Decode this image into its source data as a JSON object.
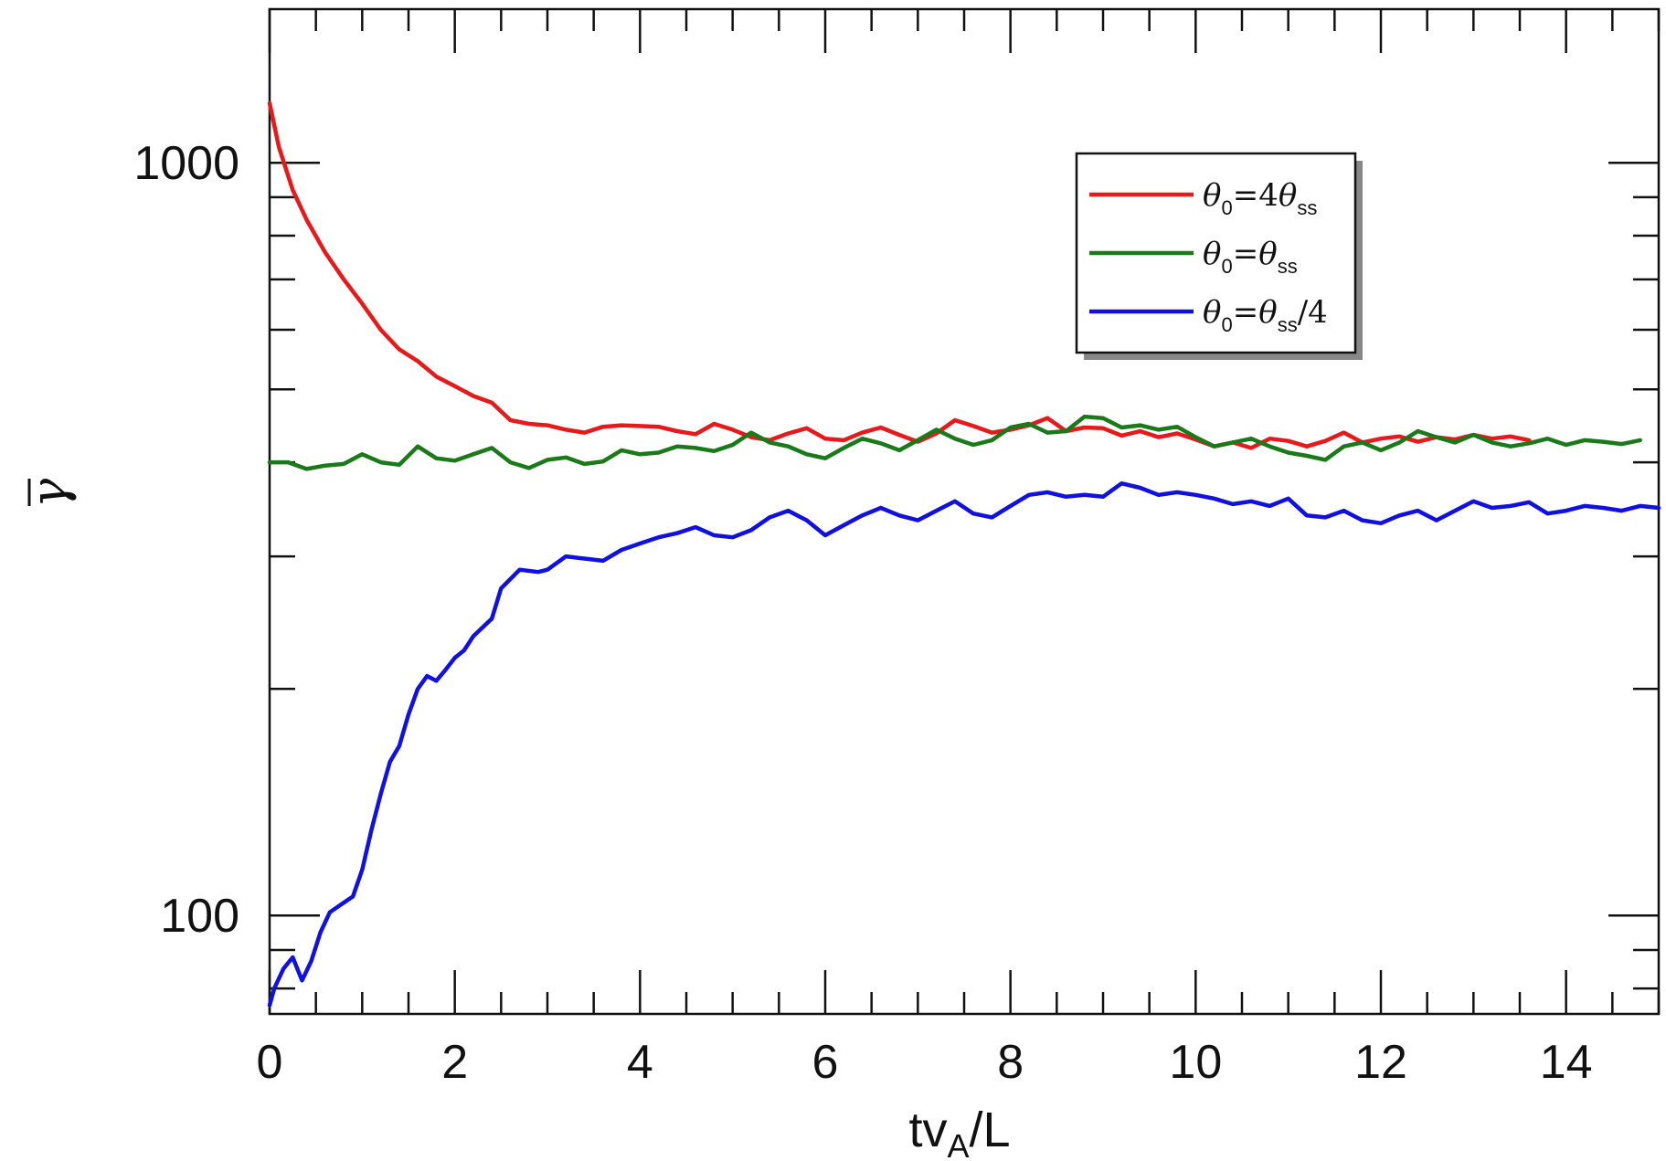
{
  "chart_data": {
    "type": "line",
    "xlabel": "tv",
    "xlabel_sub": "A",
    "xlabel_tail": "/L",
    "ylabel": "γ",
    "yscale": "log",
    "xlim": [
      0,
      15
    ],
    "ylim": [
      74,
      1600
    ],
    "x_ticks": [
      "0",
      "2",
      "4",
      "6",
      "8",
      "10",
      "12",
      "14"
    ],
    "y_ticks": [
      "100",
      "1000"
    ],
    "legend_position": "top-right",
    "series": [
      {
        "label": {
          "base": "θ",
          "sub0": "0",
          "eq": "=4θ",
          "sub1": "ss",
          "tail": ""
        },
        "color": "#e8191b",
        "points": [
          [
            0,
            1200
          ],
          [
            0.1,
            1050
          ],
          [
            0.25,
            920
          ],
          [
            0.4,
            840
          ],
          [
            0.6,
            760
          ],
          [
            0.8,
            700
          ],
          [
            1.0,
            650
          ],
          [
            1.2,
            600
          ],
          [
            1.4,
            565
          ],
          [
            1.6,
            545
          ],
          [
            1.8,
            520
          ],
          [
            2.0,
            505
          ],
          [
            2.2,
            490
          ],
          [
            2.4,
            480
          ],
          [
            2.6,
            455
          ],
          [
            2.8,
            450
          ],
          [
            3.0,
            448
          ],
          [
            3.2,
            442
          ],
          [
            3.4,
            438
          ],
          [
            3.6,
            446
          ],
          [
            3.8,
            448
          ],
          [
            4.0,
            447
          ],
          [
            4.2,
            446
          ],
          [
            4.4,
            440
          ],
          [
            4.6,
            436
          ],
          [
            4.8,
            450
          ],
          [
            5.0,
            442
          ],
          [
            5.2,
            432
          ],
          [
            5.4,
            428
          ],
          [
            5.6,
            437
          ],
          [
            5.8,
            444
          ],
          [
            6.0,
            430
          ],
          [
            6.2,
            428
          ],
          [
            6.4,
            438
          ],
          [
            6.6,
            445
          ],
          [
            6.8,
            435
          ],
          [
            7.0,
            426
          ],
          [
            7.2,
            437
          ],
          [
            7.4,
            455
          ],
          [
            7.6,
            447
          ],
          [
            7.8,
            438
          ],
          [
            8.0,
            442
          ],
          [
            8.2,
            448
          ],
          [
            8.4,
            458
          ],
          [
            8.6,
            440
          ],
          [
            8.8,
            445
          ],
          [
            9.0,
            444
          ],
          [
            9.2,
            434
          ],
          [
            9.4,
            440
          ],
          [
            9.6,
            432
          ],
          [
            9.8,
            437
          ],
          [
            10.0,
            429
          ],
          [
            10.2,
            420
          ],
          [
            10.4,
            425
          ],
          [
            10.6,
            418
          ],
          [
            10.8,
            430
          ],
          [
            11.0,
            427
          ],
          [
            11.2,
            420
          ],
          [
            11.4,
            427
          ],
          [
            11.6,
            438
          ],
          [
            11.8,
            425
          ],
          [
            12.0,
            430
          ],
          [
            12.2,
            433
          ],
          [
            12.4,
            426
          ],
          [
            12.6,
            432
          ],
          [
            12.8,
            429
          ],
          [
            13.0,
            435
          ],
          [
            13.2,
            430
          ],
          [
            13.4,
            433
          ],
          [
            13.6,
            428
          ]
        ]
      },
      {
        "label": {
          "base": "θ",
          "sub0": "0",
          "eq": "=θ",
          "sub1": "ss",
          "tail": ""
        },
        "color": "#1a7a1a",
        "points": [
          [
            0,
            400
          ],
          [
            0.2,
            400
          ],
          [
            0.4,
            392
          ],
          [
            0.6,
            396
          ],
          [
            0.8,
            398
          ],
          [
            1.0,
            410
          ],
          [
            1.2,
            400
          ],
          [
            1.4,
            397
          ],
          [
            1.6,
            420
          ],
          [
            1.8,
            405
          ],
          [
            2.0,
            402
          ],
          [
            2.2,
            410
          ],
          [
            2.4,
            418
          ],
          [
            2.6,
            400
          ],
          [
            2.8,
            393
          ],
          [
            3.0,
            403
          ],
          [
            3.2,
            406
          ],
          [
            3.4,
            398
          ],
          [
            3.6,
            401
          ],
          [
            3.8,
            415
          ],
          [
            4.0,
            410
          ],
          [
            4.2,
            412
          ],
          [
            4.4,
            420
          ],
          [
            4.6,
            418
          ],
          [
            4.8,
            414
          ],
          [
            5.0,
            422
          ],
          [
            5.2,
            438
          ],
          [
            5.4,
            425
          ],
          [
            5.6,
            420
          ],
          [
            5.8,
            410
          ],
          [
            6.0,
            405
          ],
          [
            6.2,
            418
          ],
          [
            6.4,
            430
          ],
          [
            6.6,
            424
          ],
          [
            6.8,
            415
          ],
          [
            7.0,
            428
          ],
          [
            7.2,
            442
          ],
          [
            7.4,
            430
          ],
          [
            7.6,
            422
          ],
          [
            7.8,
            428
          ],
          [
            8.0,
            445
          ],
          [
            8.2,
            450
          ],
          [
            8.4,
            438
          ],
          [
            8.6,
            440
          ],
          [
            8.8,
            460
          ],
          [
            9.0,
            458
          ],
          [
            9.2,
            445
          ],
          [
            9.4,
            448
          ],
          [
            9.6,
            442
          ],
          [
            9.8,
            446
          ],
          [
            10.0,
            432
          ],
          [
            10.2,
            420
          ],
          [
            10.4,
            425
          ],
          [
            10.6,
            430
          ],
          [
            10.8,
            420
          ],
          [
            11.0,
            412
          ],
          [
            11.2,
            408
          ],
          [
            11.4,
            403
          ],
          [
            11.6,
            420
          ],
          [
            11.8,
            425
          ],
          [
            12.0,
            415
          ],
          [
            12.2,
            425
          ],
          [
            12.4,
            440
          ],
          [
            12.6,
            432
          ],
          [
            12.8,
            425
          ],
          [
            13.0,
            435
          ],
          [
            13.2,
            425
          ],
          [
            13.4,
            420
          ],
          [
            13.6,
            424
          ],
          [
            13.8,
            430
          ],
          [
            14.0,
            422
          ],
          [
            14.2,
            428
          ],
          [
            14.4,
            426
          ],
          [
            14.6,
            423
          ],
          [
            14.8,
            428
          ]
        ]
      },
      {
        "label": {
          "base": "θ",
          "sub0": "0",
          "eq": "=θ",
          "sub1": "ss",
          "tail": "/4"
        },
        "color": "#1010e0",
        "points": [
          [
            0,
            76
          ],
          [
            0.05,
            80
          ],
          [
            0.15,
            85
          ],
          [
            0.25,
            88
          ],
          [
            0.35,
            82
          ],
          [
            0.45,
            87
          ],
          [
            0.55,
            95
          ],
          [
            0.65,
            101
          ],
          [
            0.75,
            103
          ],
          [
            0.9,
            106
          ],
          [
            1.0,
            115
          ],
          [
            1.1,
            130
          ],
          [
            1.2,
            145
          ],
          [
            1.3,
            160
          ],
          [
            1.4,
            168
          ],
          [
            1.5,
            185
          ],
          [
            1.6,
            200
          ],
          [
            1.7,
            208
          ],
          [
            1.8,
            205
          ],
          [
            1.9,
            212
          ],
          [
            2.0,
            220
          ],
          [
            2.1,
            225
          ],
          [
            2.2,
            235
          ],
          [
            2.4,
            248
          ],
          [
            2.5,
            272
          ],
          [
            2.7,
            288
          ],
          [
            2.9,
            286
          ],
          [
            3.0,
            288
          ],
          [
            3.2,
            300
          ],
          [
            3.4,
            298
          ],
          [
            3.6,
            296
          ],
          [
            3.8,
            306
          ],
          [
            4.0,
            312
          ],
          [
            4.2,
            318
          ],
          [
            4.4,
            322
          ],
          [
            4.6,
            328
          ],
          [
            4.8,
            320
          ],
          [
            5.0,
            318
          ],
          [
            5.2,
            325
          ],
          [
            5.4,
            338
          ],
          [
            5.6,
            345
          ],
          [
            5.8,
            335
          ],
          [
            6.0,
            320
          ],
          [
            6.2,
            330
          ],
          [
            6.4,
            340
          ],
          [
            6.6,
            348
          ],
          [
            6.8,
            340
          ],
          [
            7.0,
            335
          ],
          [
            7.2,
            345
          ],
          [
            7.4,
            355
          ],
          [
            7.6,
            342
          ],
          [
            7.8,
            338
          ],
          [
            8.0,
            350
          ],
          [
            8.2,
            362
          ],
          [
            8.4,
            365
          ],
          [
            8.6,
            360
          ],
          [
            8.8,
            362
          ],
          [
            9.0,
            360
          ],
          [
            9.2,
            375
          ],
          [
            9.4,
            370
          ],
          [
            9.6,
            362
          ],
          [
            9.8,
            365
          ],
          [
            10.0,
            362
          ],
          [
            10.2,
            358
          ],
          [
            10.4,
            352
          ],
          [
            10.6,
            355
          ],
          [
            10.8,
            350
          ],
          [
            11.0,
            358
          ],
          [
            11.2,
            340
          ],
          [
            11.4,
            338
          ],
          [
            11.6,
            345
          ],
          [
            11.8,
            335
          ],
          [
            12.0,
            332
          ],
          [
            12.2,
            340
          ],
          [
            12.4,
            345
          ],
          [
            12.6,
            335
          ],
          [
            12.8,
            345
          ],
          [
            13.0,
            355
          ],
          [
            13.2,
            348
          ],
          [
            13.4,
            350
          ],
          [
            13.6,
            354
          ],
          [
            13.8,
            342
          ],
          [
            14.0,
            345
          ],
          [
            14.2,
            350
          ],
          [
            14.4,
            348
          ],
          [
            14.6,
            345
          ],
          [
            14.8,
            350
          ],
          [
            15.0,
            348
          ]
        ]
      }
    ]
  }
}
